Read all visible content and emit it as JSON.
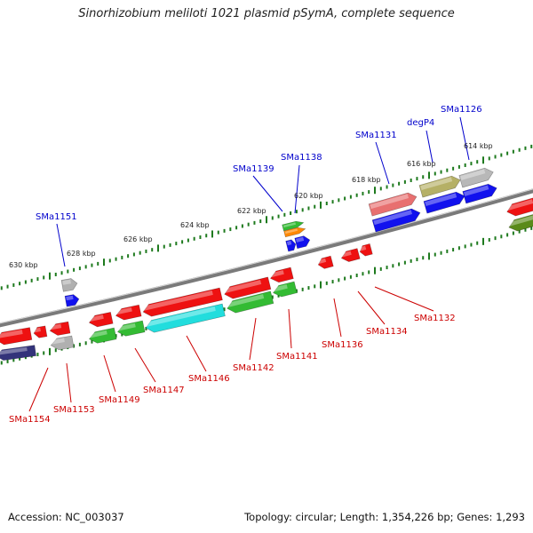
{
  "title": "Sinorhizobium meliloti 1021 plasmid pSymA, complete sequence",
  "footer": {
    "accession": "Accession: NC_003037",
    "topology": "Topology: circular; Length: 1,354,226 bp; Genes: 1,293"
  },
  "colors": {
    "backbone": "#8a8a8a",
    "forward_label": "#0000cc",
    "reverse_label": "#cc0000",
    "tick": "#1e7a1e"
  },
  "kbp_labels": [
    "630 kbp",
    "628 kbp",
    "626 kbp",
    "624 kbp",
    "622 kbp",
    "620 kbp",
    "618 kbp",
    "616 kbp",
    "614 kbp"
  ],
  "forward_genes": [
    "SMa1151",
    "SMa1139",
    "SMa1138",
    "SMa1131",
    "degP4",
    "SMa1126"
  ],
  "reverse_genes": [
    "SMa1154",
    "SMa1153",
    "SMa1149",
    "SMa1147",
    "SMa1146",
    "SMa1142",
    "SMa1141",
    "SMa1136",
    "SMa1134",
    "SMa1132"
  ]
}
